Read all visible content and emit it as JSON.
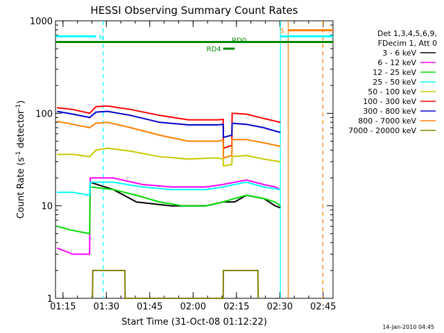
{
  "chart_data": {
    "type": "line",
    "title": "HESSI Observing Summary Count Rates",
    "xlabel": "Start Time (31-Oct-08 01:12:22)",
    "ylabel_parts": [
      "Count Rate (s",
      "-1",
      " detector",
      "-1",
      ")"
    ],
    "x_unit": "minutes after 01:12:22",
    "xlim": [
      0,
      96
    ],
    "ylim": [
      1,
      1000
    ],
    "yscale": "log",
    "x_ticks": [
      {
        "label": "01:15",
        "x": 2.6
      },
      {
        "label": "01:30",
        "x": 17.6
      },
      {
        "label": "01:45",
        "x": 32.6
      },
      {
        "label": "02:00",
        "x": 47.6
      },
      {
        "label": "02:15",
        "x": 62.6
      },
      {
        "label": "02:30",
        "x": 77.6
      },
      {
        "label": "02:45",
        "x": 92.6
      }
    ],
    "y_ticks": [
      {
        "label": "1",
        "y": 1
      },
      {
        "label": "10",
        "y": 10
      },
      {
        "label": "100",
        "y": 100
      },
      {
        "label": "1000",
        "y": 1000
      }
    ],
    "legend_header": [
      "Det 1,3,4,5,6,9,",
      "FDecim 1, Att 0"
    ],
    "legend_placement": "right",
    "footer_date": "14-Jan-2010 04:45",
    "series": [
      {
        "name": "3 - 6 keV",
        "color": "#000000",
        "points": [
          [
            11.8,
            18
          ],
          [
            20,
            15
          ],
          [
            28,
            11
          ],
          [
            40,
            10
          ],
          [
            52,
            10
          ],
          [
            58,
            11
          ],
          [
            62,
            11
          ],
          [
            66,
            13
          ],
          [
            72,
            12
          ],
          [
            76,
            10
          ],
          [
            77.8,
            9.5
          ]
        ]
      },
      {
        "name": "6 - 12 keV",
        "color": "#ff00ff",
        "points": [
          [
            0.5,
            3.5
          ],
          [
            6,
            3
          ],
          [
            11.8,
            3
          ],
          [
            12,
            20
          ],
          [
            20,
            20
          ],
          [
            30,
            17
          ],
          [
            40,
            16
          ],
          [
            52,
            16
          ],
          [
            58,
            17
          ],
          [
            62,
            18
          ],
          [
            66,
            19
          ],
          [
            72,
            17
          ],
          [
            76,
            16
          ],
          [
            77.8,
            15
          ]
        ]
      },
      {
        "name": "12 - 25 keV",
        "color": "#00dd00",
        "points": [
          [
            0.5,
            6
          ],
          [
            5,
            5.5
          ],
          [
            11.8,
            5
          ],
          [
            12,
            16
          ],
          [
            20,
            15
          ],
          [
            28,
            13
          ],
          [
            36,
            11
          ],
          [
            44,
            10
          ],
          [
            52,
            10
          ],
          [
            58,
            11
          ],
          [
            62,
            12
          ],
          [
            66,
            13
          ],
          [
            72,
            12
          ],
          [
            76,
            11
          ],
          [
            77.8,
            10
          ]
        ]
      },
      {
        "name": "25 - 50 keV",
        "color": "#00ffff",
        "points": [
          [
            0.5,
            14
          ],
          [
            6,
            14
          ],
          [
            11.8,
            13
          ],
          [
            12,
            18
          ],
          [
            20,
            18
          ],
          [
            30,
            16
          ],
          [
            40,
            15
          ],
          [
            52,
            15
          ],
          [
            58,
            16
          ],
          [
            62,
            17
          ],
          [
            66,
            18
          ],
          [
            72,
            16
          ],
          [
            77.8,
            15
          ]
        ]
      },
      {
        "name": "50 - 100 keV",
        "color": "#c8c800",
        "points": [
          [
            0.5,
            36
          ],
          [
            6,
            36
          ],
          [
            11.8,
            34
          ],
          [
            14,
            40
          ],
          [
            18,
            42
          ],
          [
            26,
            39
          ],
          [
            36,
            34
          ],
          [
            46,
            32
          ],
          [
            56,
            33
          ],
          [
            58,
            32
          ],
          [
            58.1,
            27
          ],
          [
            61,
            28
          ],
          [
            61.1,
            34
          ],
          [
            66,
            35
          ],
          [
            72,
            32
          ],
          [
            77.8,
            30
          ]
        ]
      },
      {
        "name": "100 - 300 keV",
        "color": "#ff0000",
        "points": [
          [
            0.5,
            115
          ],
          [
            6,
            110
          ],
          [
            11.8,
            100
          ],
          [
            14,
            118
          ],
          [
            18,
            120
          ],
          [
            26,
            110
          ],
          [
            36,
            95
          ],
          [
            46,
            85
          ],
          [
            56,
            85
          ],
          [
            58,
            86
          ],
          [
            58.1,
            42
          ],
          [
            61,
            45
          ],
          [
            61.1,
            100
          ],
          [
            66,
            98
          ],
          [
            72,
            88
          ],
          [
            77.8,
            80
          ]
        ]
      },
      {
        "name": "300 - 800 keV",
        "color": "#0000cc",
        "points": [
          [
            0.5,
            105
          ],
          [
            6,
            98
          ],
          [
            11.8,
            90
          ],
          [
            14,
            103
          ],
          [
            18,
            105
          ],
          [
            26,
            95
          ],
          [
            36,
            80
          ],
          [
            46,
            75
          ],
          [
            56,
            75
          ],
          [
            58,
            76
          ],
          [
            58.1,
            55
          ],
          [
            61,
            58
          ],
          [
            61.1,
            78
          ],
          [
            66,
            76
          ],
          [
            72,
            70
          ],
          [
            77.8,
            62
          ]
        ]
      },
      {
        "name": "800 - 7000 keV",
        "color": "#ff8000",
        "points": [
          [
            0.5,
            82
          ],
          [
            6,
            76
          ],
          [
            11.8,
            70
          ],
          [
            14,
            78
          ],
          [
            18,
            80
          ],
          [
            26,
            70
          ],
          [
            36,
            58
          ],
          [
            46,
            50
          ],
          [
            56,
            50
          ],
          [
            58,
            51
          ],
          [
            58.1,
            33
          ],
          [
            61,
            35
          ],
          [
            61.1,
            52
          ],
          [
            66,
            52
          ],
          [
            72,
            48
          ],
          [
            77.8,
            44
          ]
        ]
      },
      {
        "name": "7000 - 20000 keV",
        "color": "#808000",
        "points": [
          [
            12.8,
            1
          ],
          [
            12.9,
            2
          ],
          [
            24,
            2
          ],
          [
            24.1,
            1
          ],
          [
            58,
            1
          ],
          [
            58.1,
            2
          ],
          [
            70,
            2
          ],
          [
            70.1,
            1
          ]
        ]
      }
    ],
    "flags": [
      {
        "label": "N",
        "color": "#00ffff",
        "y": 680,
        "x_start": 0,
        "x_end": 14
      },
      {
        "label": "RD0",
        "color": "#008800",
        "y": 590,
        "x_start": 0,
        "x_end": 96
      },
      {
        "label": "RD4",
        "color": "#008800",
        "y": 500,
        "x_start": 58,
        "x_end": 62
      },
      {
        "label": "S",
        "color": "#ff8000",
        "y": 790,
        "x_start": 80.5,
        "x_end": 96
      },
      {
        "label": "",
        "color": "#00ffff",
        "y": 680,
        "x_start": 77.8,
        "x_end": 96
      }
    ],
    "vertical_markers": [
      {
        "x": 16.5,
        "color": "#00ffff",
        "style": "dashed"
      },
      {
        "x": 77.8,
        "color": "#00ffff",
        "style": "solid"
      },
      {
        "x": 80.5,
        "color": "#ff8000",
        "style": "solid"
      },
      {
        "x": 92.5,
        "color": "#ff8000",
        "style": "dashed"
      }
    ]
  }
}
